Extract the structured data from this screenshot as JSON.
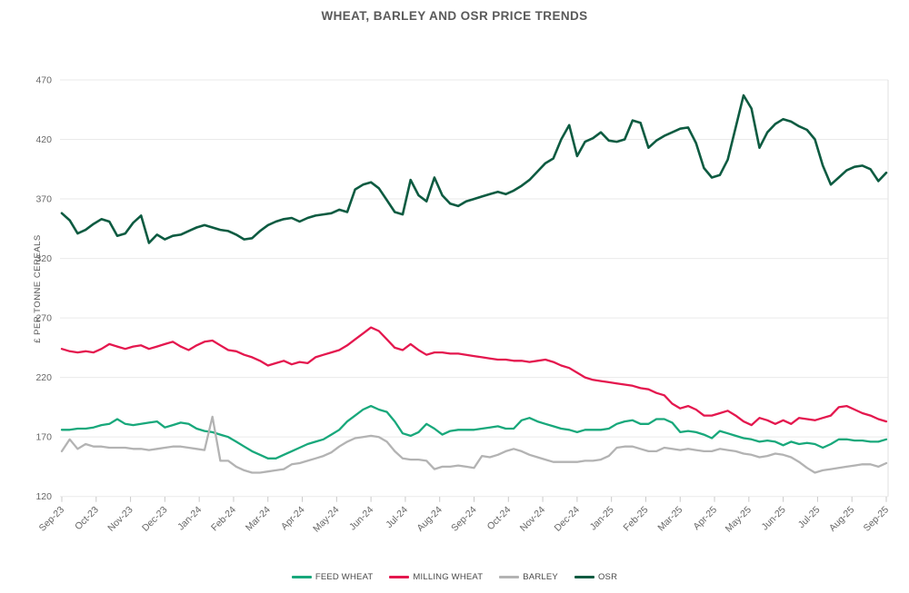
{
  "chart_data": {
    "type": "line",
    "title": "WHEAT, BARLEY AND OSR PRICE TRENDS",
    "xlabel": "",
    "ylabel": "£ PER TONNE CEREALS",
    "ylim": [
      120,
      470
    ],
    "yticks": [
      120,
      170,
      220,
      270,
      320,
      370,
      420,
      470
    ],
    "grid": "horizontal",
    "legend_position": "bottom",
    "x_tick_labels": [
      "Sep-23",
      "Oct-23",
      "Nov-23",
      "Dec-23",
      "Jan-24",
      "Feb-24",
      "Mar-24",
      "Apr-24",
      "May-24",
      "Jun-24",
      "Jul-24",
      "Aug-24",
      "Sep-24",
      "Oct-24",
      "Nov-24",
      "Dec-24",
      "Jan-25",
      "Feb-25",
      "Mar-25",
      "Apr-25",
      "May-25",
      "Jun-25",
      "Jul-25",
      "Aug-25",
      "Sep-25"
    ],
    "x_unit": "weekly samples from Sep-23 to Sep-25",
    "series": [
      {
        "name": "FEED WHEAT",
        "color": "#18A87B",
        "values": [
          176,
          176,
          177,
          177,
          178,
          180,
          181,
          185,
          181,
          180,
          181,
          182,
          183,
          178,
          180,
          182,
          181,
          177,
          175,
          174,
          172,
          170,
          166,
          162,
          158,
          155,
          152,
          152,
          155,
          158,
          161,
          164,
          166,
          168,
          172,
          176,
          183,
          188,
          193,
          196,
          193,
          191,
          183,
          173,
          171,
          174,
          181,
          177,
          172,
          175,
          176,
          176,
          176,
          177,
          178,
          179,
          177,
          177,
          184,
          186,
          183,
          181,
          179,
          177,
          176,
          174,
          176,
          176,
          176,
          177,
          181,
          183,
          184,
          181,
          181,
          185,
          185,
          182,
          174,
          175,
          174,
          172,
          169,
          175,
          173,
          171,
          169,
          168,
          166,
          167,
          166,
          163,
          166,
          164,
          165,
          164,
          161,
          164,
          168,
          168,
          167,
          167,
          166,
          166,
          168
        ]
      },
      {
        "name": "MILLING WHEAT",
        "color": "#E4174E",
        "values": [
          244,
          242,
          241,
          242,
          241,
          244,
          248,
          246,
          244,
          246,
          247,
          244,
          246,
          248,
          250,
          246,
          243,
          247,
          250,
          251,
          247,
          243,
          242,
          239,
          237,
          234,
          230,
          232,
          234,
          231,
          233,
          232,
          237,
          239,
          241,
          243,
          247,
          252,
          257,
          262,
          259,
          252,
          245,
          243,
          248,
          243,
          239,
          241,
          241,
          240,
          240,
          239,
          238,
          237,
          236,
          235,
          235,
          234,
          234,
          233,
          234,
          235,
          233,
          230,
          228,
          224,
          220,
          218,
          217,
          216,
          215,
          214,
          213,
          211,
          210,
          207,
          205,
          198,
          194,
          196,
          193,
          188,
          188,
          190,
          192,
          188,
          183,
          180,
          186,
          184,
          181,
          184,
          181,
          186,
          185,
          184,
          186,
          188,
          195,
          196,
          193,
          190,
          188,
          185,
          183
        ]
      },
      {
        "name": "BARLEY",
        "color": "#B3B3B3",
        "values": [
          158,
          168,
          160,
          164,
          162,
          162,
          161,
          161,
          161,
          160,
          160,
          159,
          160,
          161,
          162,
          162,
          161,
          160,
          159,
          187,
          150,
          150,
          145,
          142,
          140,
          140,
          141,
          142,
          143,
          147,
          148,
          150,
          152,
          154,
          157,
          162,
          166,
          169,
          170,
          171,
          170,
          166,
          158,
          152,
          151,
          151,
          150,
          143,
          145,
          145,
          146,
          145,
          144,
          154,
          153,
          155,
          158,
          160,
          158,
          155,
          153,
          151,
          149,
          149,
          149,
          149,
          150,
          150,
          151,
          154,
          161,
          162,
          162,
          160,
          158,
          158,
          161,
          160,
          159,
          160,
          159,
          158,
          158,
          160,
          159,
          158,
          156,
          155,
          153,
          154,
          156,
          155,
          153,
          149,
          144,
          140,
          142,
          143,
          144,
          145,
          146,
          147,
          147,
          145,
          148
        ]
      },
      {
        "name": "OSR",
        "color": "#0D5B41",
        "values": [
          358,
          352,
          341,
          344,
          349,
          353,
          351,
          339,
          341,
          350,
          356,
          333,
          340,
          336,
          339,
          340,
          343,
          346,
          348,
          346,
          344,
          343,
          340,
          336,
          337,
          343,
          348,
          351,
          353,
          354,
          351,
          354,
          356,
          357,
          358,
          361,
          359,
          378,
          382,
          384,
          379,
          369,
          359,
          357,
          386,
          373,
          368,
          388,
          373,
          366,
          364,
          368,
          370,
          372,
          374,
          376,
          374,
          377,
          381,
          386,
          393,
          400,
          404,
          420,
          432,
          406,
          418,
          421,
          426,
          419,
          418,
          420,
          436,
          434,
          413,
          419,
          423,
          426,
          429,
          430,
          417,
          396,
          388,
          390,
          403,
          430,
          457,
          446,
          413,
          426,
          433,
          437,
          435,
          431,
          428,
          420,
          398,
          382,
          388,
          394,
          397,
          398,
          395,
          385,
          392
        ]
      }
    ]
  },
  "style": {
    "gridline_color": "#EAEAEA",
    "tick_color": "#C9C9C9",
    "border_color": "#E2E2E2",
    "tick_label_color": "#666666",
    "axis_title_color": "#555555"
  }
}
